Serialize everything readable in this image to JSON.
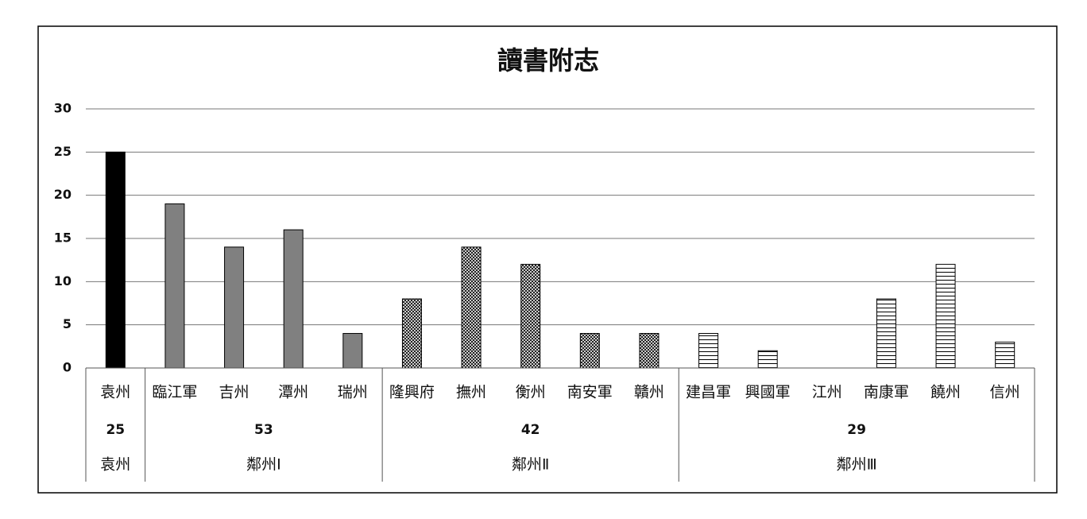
{
  "chart_data": {
    "type": "bar",
    "title": "讀書附志",
    "ylim": [
      0,
      30
    ],
    "yticks": [
      0,
      5,
      10,
      15,
      20,
      25,
      30
    ],
    "grid": true,
    "groups": [
      {
        "name": "袁州",
        "total": 25,
        "fill": "solid",
        "color": "#000000",
        "categories": [
          "袁州"
        ],
        "values": [
          25
        ]
      },
      {
        "name": "鄰州Ⅰ",
        "total": 53,
        "fill": "solid",
        "color": "#808080",
        "categories": [
          "臨江軍",
          "吉州",
          "潭州",
          "瑞州"
        ],
        "values": [
          19,
          14,
          16,
          4
        ]
      },
      {
        "name": "鄰州Ⅱ",
        "total": 42,
        "fill": "crosshatch",
        "color": "#000000",
        "categories": [
          "隆興府",
          "撫州",
          "衡州",
          "南安軍",
          "贛州"
        ],
        "values": [
          8,
          14,
          12,
          4,
          4
        ]
      },
      {
        "name": "鄰州Ⅲ",
        "total": 29,
        "fill": "horizontal-lines",
        "color": "#000000",
        "categories": [
          "建昌軍",
          "興國軍",
          "江州",
          "南康軍",
          "饒州",
          "信州"
        ],
        "values": [
          4,
          2,
          0,
          8,
          12,
          3
        ]
      }
    ]
  }
}
